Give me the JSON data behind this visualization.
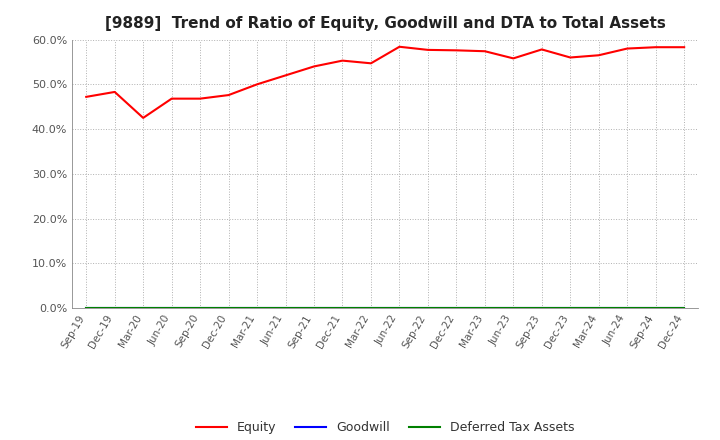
{
  "title": "[9889]  Trend of Ratio of Equity, Goodwill and DTA to Total Assets",
  "x_labels": [
    "Sep-19",
    "Dec-19",
    "Mar-20",
    "Jun-20",
    "Sep-20",
    "Dec-20",
    "Mar-21",
    "Jun-21",
    "Sep-21",
    "Dec-21",
    "Mar-22",
    "Jun-22",
    "Sep-22",
    "Dec-22",
    "Mar-23",
    "Jun-23",
    "Sep-23",
    "Dec-23",
    "Mar-24",
    "Jun-24",
    "Sep-24",
    "Dec-24"
  ],
  "equity": [
    0.472,
    0.483,
    0.425,
    0.468,
    0.468,
    0.476,
    0.5,
    0.52,
    0.54,
    0.553,
    0.547,
    0.584,
    0.577,
    0.576,
    0.574,
    0.558,
    0.578,
    0.56,
    0.565,
    0.58,
    0.583,
    0.583
  ],
  "goodwill": [
    0.0,
    0.0,
    0.0,
    0.0,
    0.0,
    0.0,
    0.0,
    0.0,
    0.0,
    0.0,
    0.0,
    0.0,
    0.0,
    0.0,
    0.0,
    0.0,
    0.0,
    0.0,
    0.0,
    0.0,
    0.0,
    0.0
  ],
  "dta": [
    0.0,
    0.0,
    0.0,
    0.0,
    0.0,
    0.0,
    0.0,
    0.0,
    0.0,
    0.0,
    0.0,
    0.0,
    0.0,
    0.0,
    0.0,
    0.0,
    0.0,
    0.0,
    0.0,
    0.0,
    0.0,
    0.0
  ],
  "equity_color": "#ff0000",
  "goodwill_color": "#0000ff",
  "dta_color": "#008000",
  "ylim": [
    0.0,
    0.6
  ],
  "yticks": [
    0.0,
    0.1,
    0.2,
    0.3,
    0.4,
    0.5,
    0.6
  ],
  "background_color": "#ffffff",
  "grid_color": "#b0b0b0",
  "title_fontsize": 11,
  "tick_label_color": "#555555",
  "legend_labels": [
    "Equity",
    "Goodwill",
    "Deferred Tax Assets"
  ]
}
